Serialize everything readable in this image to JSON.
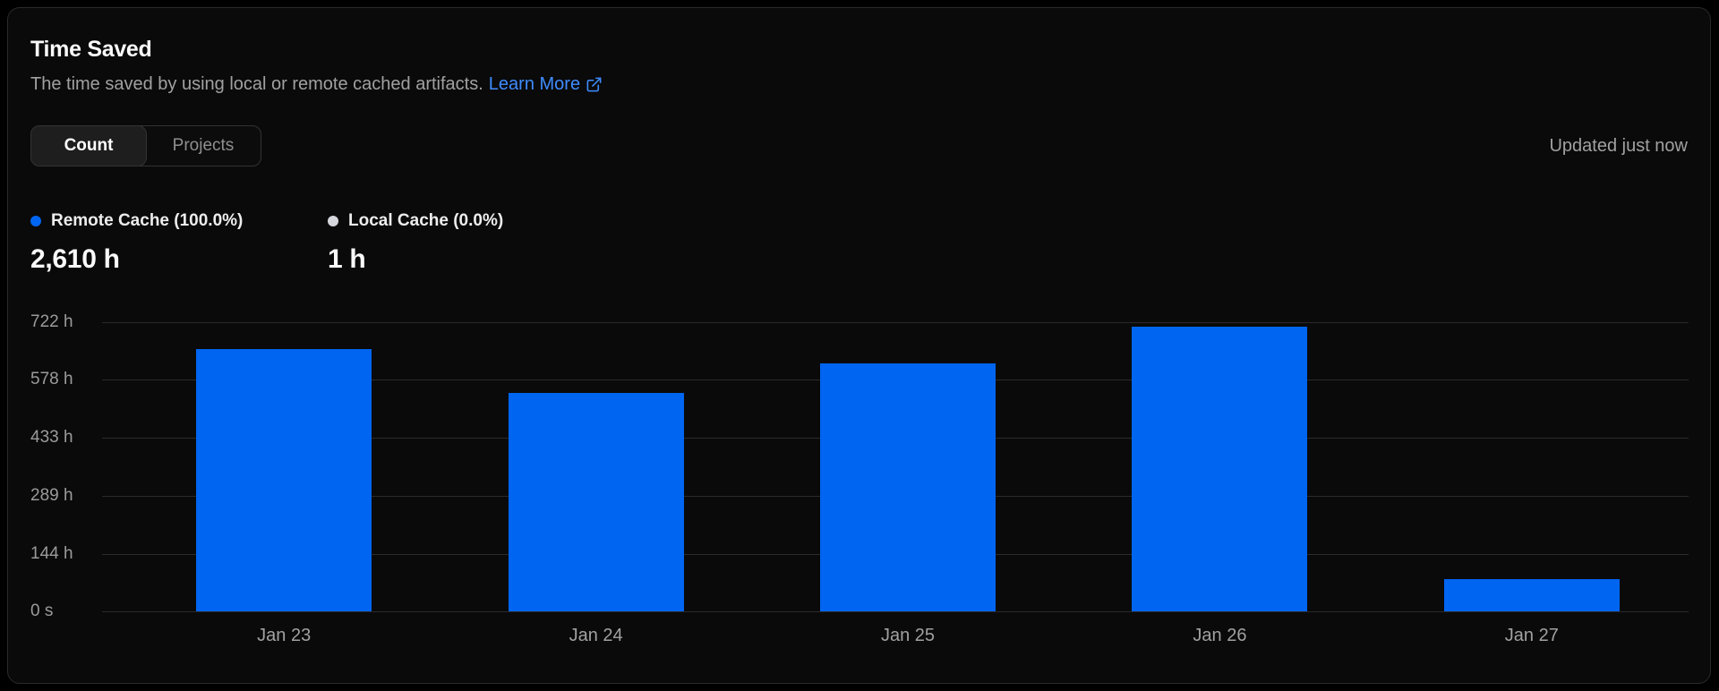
{
  "card": {
    "title": "Time Saved",
    "description": "The time saved by using local or remote cached artifacts.",
    "link_label": "Learn More",
    "updated_text": "Updated just now",
    "tabs": [
      {
        "label": "Count",
        "active": true
      },
      {
        "label": "Projects",
        "active": false
      }
    ]
  },
  "legend": [
    {
      "label": "Remote Cache (100.0%)",
      "value": "2,610 h",
      "color": "#0065f0"
    },
    {
      "label": "Local Cache (0.0%)",
      "value": "1 h",
      "color": "#d6d6dd"
    }
  ],
  "chart_data": {
    "type": "bar",
    "title": "Time Saved",
    "categories": [
      "Jan 23",
      "Jan 24",
      "Jan 25",
      "Jan 26",
      "Jan 27"
    ],
    "series": [
      {
        "name": "Remote Cache",
        "values": [
          655,
          545,
          620,
          710,
          80
        ]
      }
    ],
    "ylim": [
      0,
      722
    ],
    "y_ticks": [
      {
        "value": 722,
        "label": "722 h"
      },
      {
        "value": 578,
        "label": "578 h"
      },
      {
        "value": 433,
        "label": "433 h"
      },
      {
        "value": 289,
        "label": "289 h"
      },
      {
        "value": 144,
        "label": "144 h"
      },
      {
        "value": 0,
        "label": "0 s"
      }
    ],
    "xlabel": "",
    "ylabel": "",
    "grid": true,
    "legend_position": "top-left",
    "bar_color": "#0065f0"
  },
  "colors": {
    "page_bg": "#000000",
    "card_bg": "#0a0a0a",
    "card_border": "#2a2a2a",
    "link_blue": "#3f8cff",
    "bar_blue": "#0065f0",
    "gridline": "#2b2b2b",
    "muted_text": "#a1a1a1"
  }
}
